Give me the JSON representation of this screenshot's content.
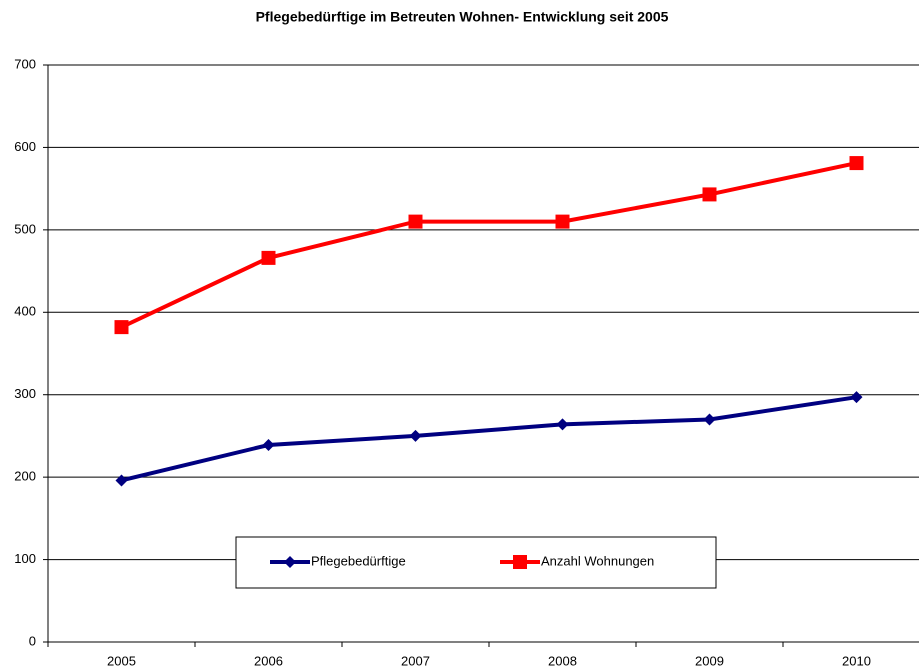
{
  "chart_data": {
    "type": "line",
    "title": "Pflegebedürftige im Betreuten Wohnen- Entwicklung seit 2005",
    "categories": [
      "2005",
      "2006",
      "2007",
      "2008",
      "2009",
      "2010"
    ],
    "series": [
      {
        "name": "Pflegebedürftige",
        "color": "#000080",
        "marker": "diamond",
        "values": [
          196,
          239,
          250,
          264,
          270,
          297
        ]
      },
      {
        "name": "Anzahl Wohnungen",
        "color": "#ff0000",
        "marker": "square",
        "values": [
          382,
          466,
          510,
          510,
          543,
          581
        ]
      }
    ],
    "ylim": [
      0,
      700
    ],
    "yticks": [
      0,
      100,
      200,
      300,
      400,
      500,
      600,
      700
    ],
    "grid": true
  }
}
